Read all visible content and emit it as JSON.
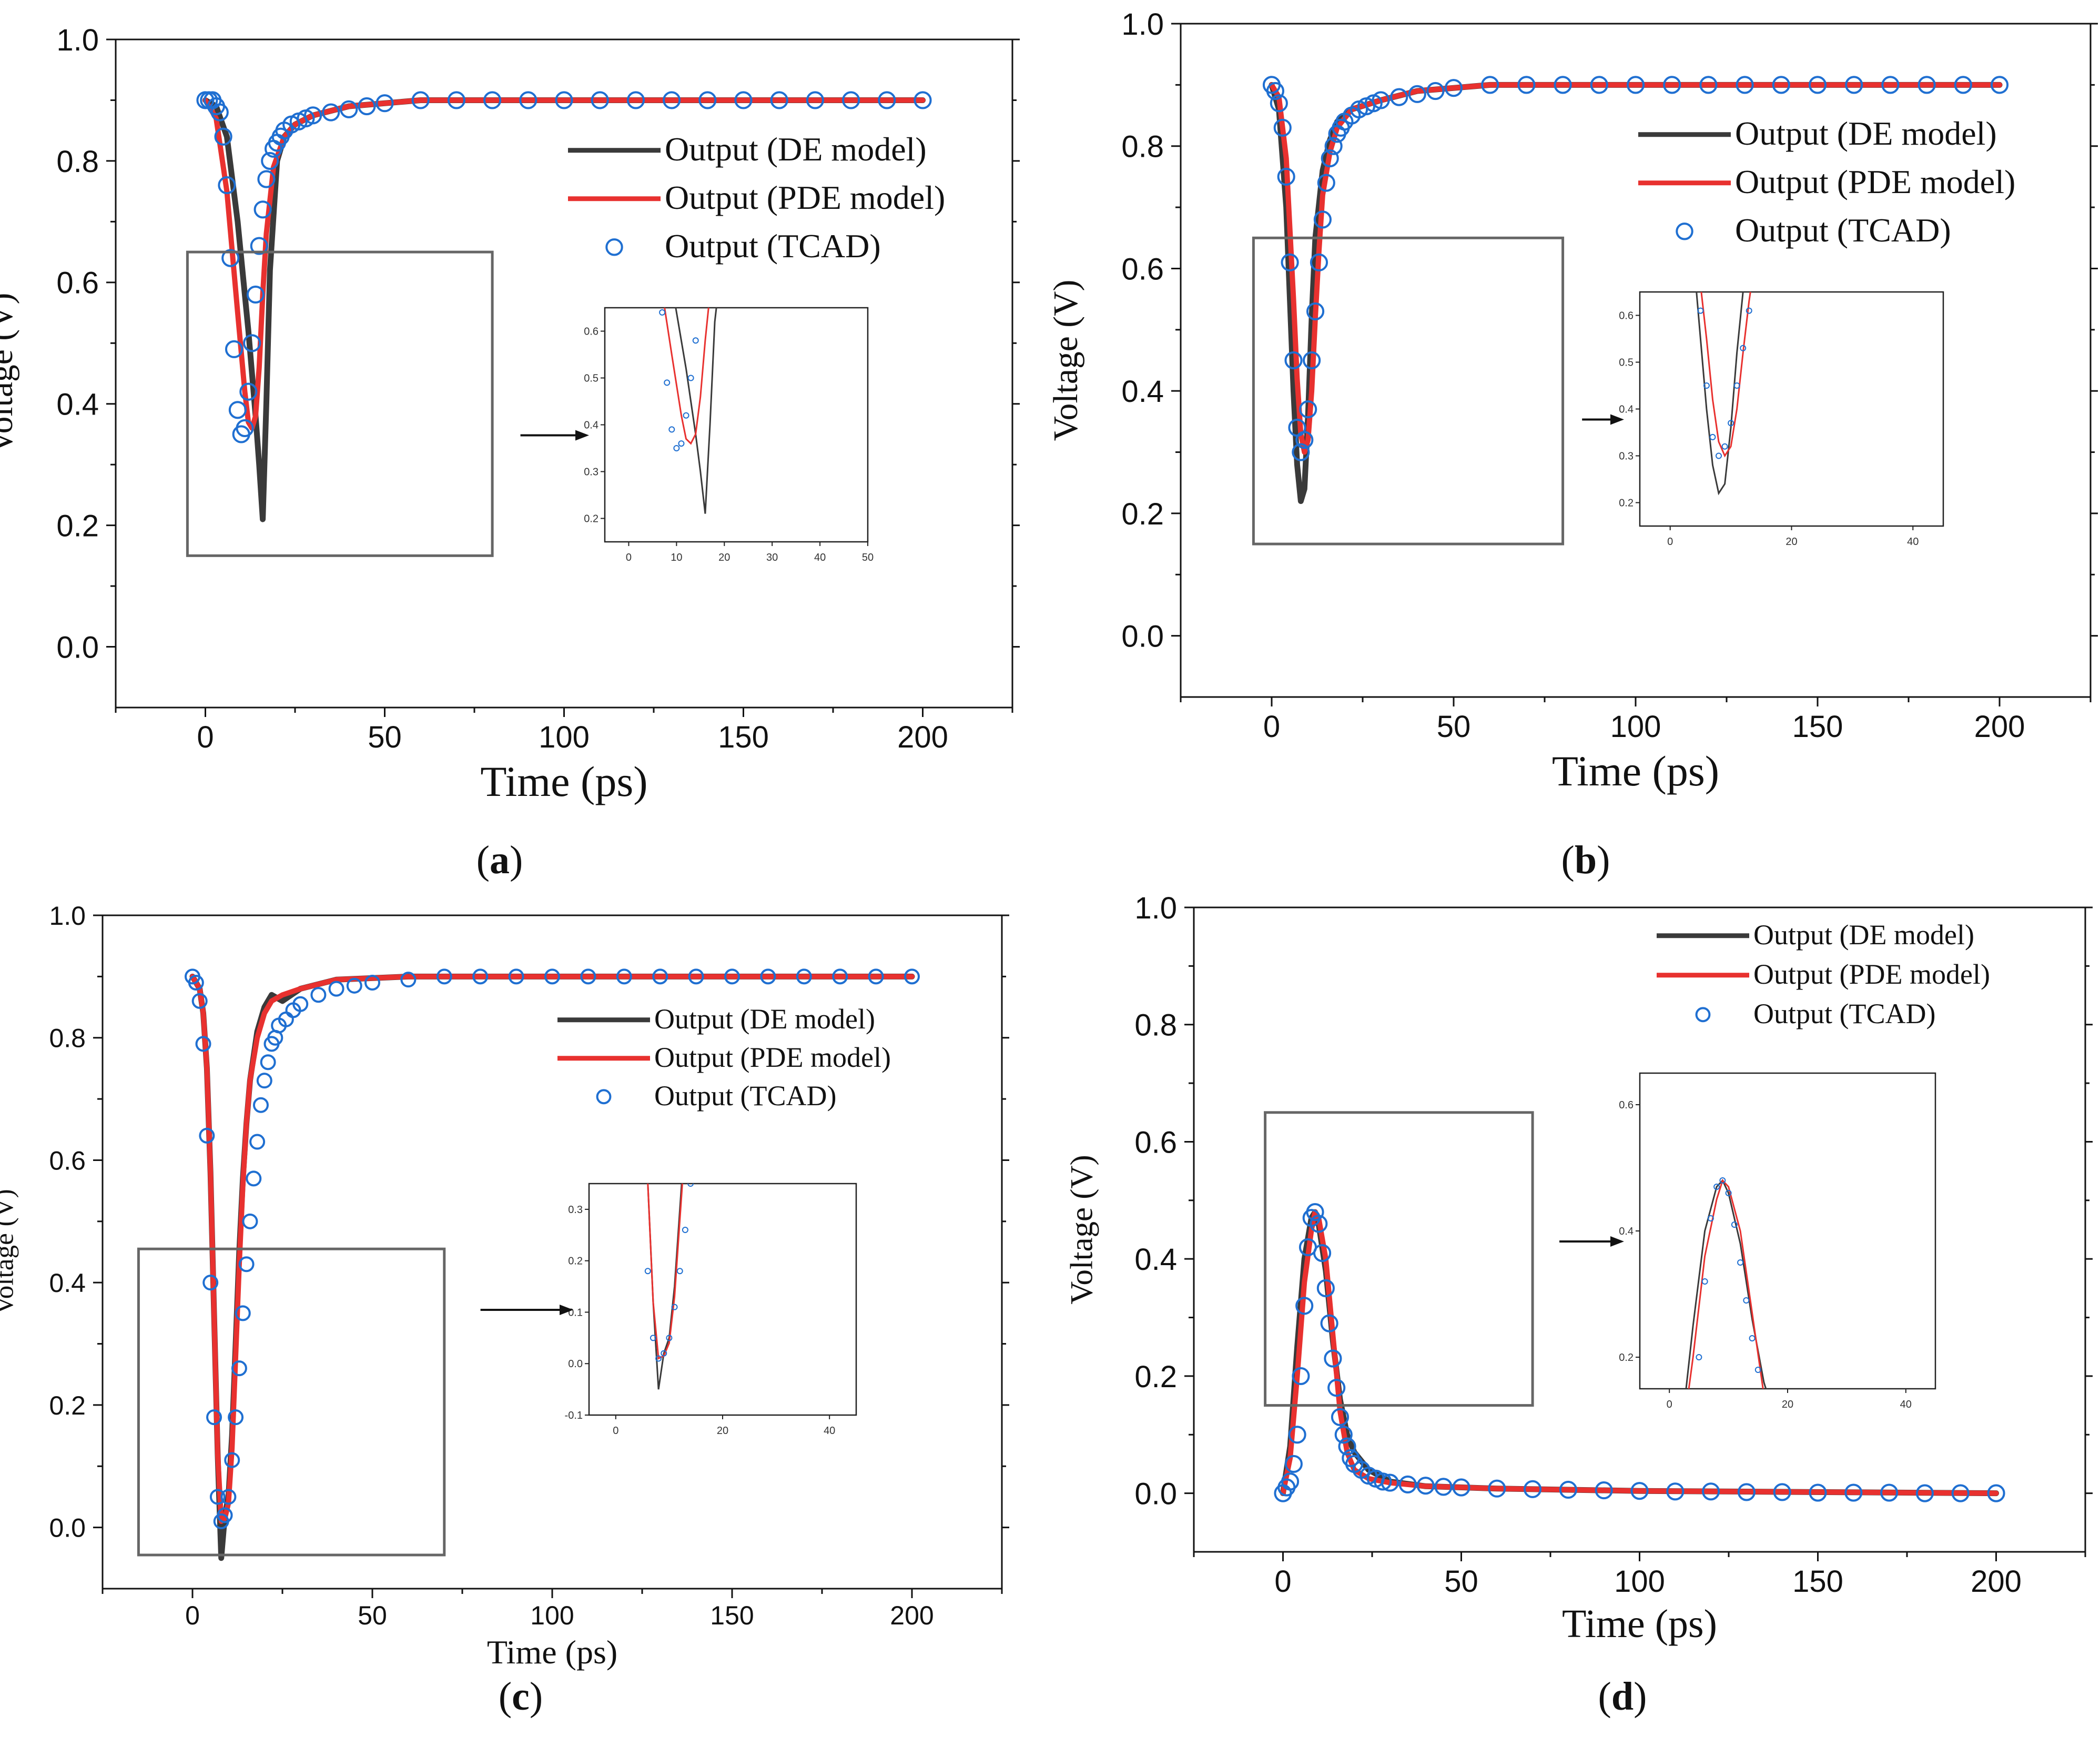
{
  "colors": {
    "de": "#3a3a3a",
    "pde": "#e8312f",
    "tcad": "#1f6fd1",
    "axis": "#111111",
    "zoom_box": "#666666"
  },
  "legend_labels": {
    "de": "Output (DE model)",
    "pde": "Output (PDE model)",
    "tcad": "Output (TCAD)"
  },
  "chart_data": [
    {
      "id": "a",
      "caption_letter": "a",
      "type": "line",
      "xlabel": "Time (ps)",
      "ylabel": "Voltage (V)",
      "xlim": [
        -25,
        225
      ],
      "ylim": [
        -0.1,
        1.0
      ],
      "xticks": [
        "0",
        "50",
        "100",
        "150",
        "200"
      ],
      "yticks": [
        "0.0",
        "0.2",
        "0.4",
        "0.6",
        "0.8",
        "1.0"
      ],
      "series": [
        {
          "name": "Output (DE model)",
          "key": "de",
          "kind": "line",
          "x": [
            0,
            3,
            6,
            9,
            12,
            14,
            15,
            16,
            17,
            18,
            20,
            22,
            25,
            30,
            40,
            60,
            80,
            200
          ],
          "y": [
            0.9,
            0.89,
            0.84,
            0.7,
            0.52,
            0.38,
            0.3,
            0.21,
            0.4,
            0.62,
            0.8,
            0.84,
            0.86,
            0.875,
            0.89,
            0.9,
            0.9,
            0.9
          ]
        },
        {
          "name": "Output (PDE model)",
          "key": "pde",
          "kind": "line",
          "x": [
            0,
            3,
            6,
            9,
            11,
            12,
            13,
            14,
            15,
            16,
            17,
            19,
            22,
            25,
            30,
            40,
            60,
            200
          ],
          "y": [
            0.9,
            0.87,
            0.75,
            0.55,
            0.42,
            0.37,
            0.36,
            0.38,
            0.46,
            0.58,
            0.68,
            0.79,
            0.84,
            0.86,
            0.875,
            0.89,
            0.9,
            0.9
          ]
        },
        {
          "name": "Output (TCAD)",
          "key": "tcad",
          "kind": "scatter",
          "x": [
            0,
            1,
            2,
            3,
            4,
            5,
            6,
            7,
            8,
            9,
            10,
            11,
            12,
            13,
            14,
            15,
            16,
            17,
            18,
            19,
            20,
            21,
            22,
            24,
            26,
            28,
            30,
            35,
            40,
            45,
            50,
            60,
            70,
            80,
            90,
            100,
            110,
            120,
            130,
            140,
            150,
            160,
            170,
            180,
            190,
            200
          ],
          "y": [
            0.9,
            0.9,
            0.9,
            0.89,
            0.88,
            0.84,
            0.76,
            0.64,
            0.49,
            0.39,
            0.35,
            0.36,
            0.42,
            0.5,
            0.58,
            0.66,
            0.72,
            0.77,
            0.8,
            0.82,
            0.83,
            0.84,
            0.85,
            0.86,
            0.865,
            0.87,
            0.875,
            0.88,
            0.885,
            0.89,
            0.895,
            0.9,
            0.9,
            0.9,
            0.9,
            0.9,
            0.9,
            0.9,
            0.9,
            0.9,
            0.9,
            0.9,
            0.9,
            0.9,
            0.9,
            0.9
          ]
        }
      ],
      "zoom_box": {
        "x": [
          -5,
          80
        ],
        "y": [
          0.15,
          0.65
        ]
      },
      "inset": {
        "xlim": [
          -5,
          50
        ],
        "ylim": [
          0.15,
          0.65
        ],
        "xticks": [
          "0",
          "10",
          "20",
          "30",
          "40",
          "50"
        ],
        "yticks": [
          "0.2",
          "0.3",
          "0.4",
          "0.5",
          "0.6"
        ]
      }
    },
    {
      "id": "b",
      "caption_letter": "b",
      "type": "line",
      "xlabel": "Time (ps)",
      "ylabel": "Voltage (V)",
      "xlim": [
        -25,
        225
      ],
      "ylim": [
        -0.1,
        1.0
      ],
      "xticks": [
        "0",
        "50",
        "100",
        "150",
        "200"
      ],
      "yticks": [
        "0.0",
        "0.2",
        "0.4",
        "0.6",
        "0.8",
        "1.0"
      ],
      "series": [
        {
          "name": "Output (DE model)",
          "key": "de",
          "kind": "line",
          "x": [
            0,
            2,
            4,
            5,
            6,
            7,
            8,
            9,
            10,
            11,
            12,
            14,
            16,
            18,
            22,
            30,
            40,
            60,
            200
          ],
          "y": [
            0.9,
            0.86,
            0.7,
            0.55,
            0.4,
            0.28,
            0.22,
            0.24,
            0.36,
            0.52,
            0.65,
            0.76,
            0.81,
            0.84,
            0.86,
            0.875,
            0.89,
            0.9,
            0.9
          ]
        },
        {
          "name": "Output (PDE model)",
          "key": "pde",
          "kind": "line",
          "x": [
            0,
            2,
            4,
            6,
            7,
            8,
            9,
            10,
            11,
            12,
            13,
            14,
            16,
            18,
            22,
            30,
            40,
            60,
            200
          ],
          "y": [
            0.9,
            0.88,
            0.78,
            0.55,
            0.42,
            0.33,
            0.3,
            0.32,
            0.4,
            0.52,
            0.63,
            0.72,
            0.79,
            0.83,
            0.86,
            0.875,
            0.89,
            0.9,
            0.9
          ]
        },
        {
          "name": "Output (TCAD)",
          "key": "tcad",
          "kind": "scatter",
          "x": [
            0,
            1,
            2,
            3,
            4,
            5,
            6,
            7,
            8,
            9,
            10,
            11,
            12,
            13,
            14,
            15,
            16,
            17,
            18,
            19,
            20,
            22,
            24,
            26,
            28,
            30,
            35,
            40,
            45,
            50,
            60,
            70,
            80,
            90,
            100,
            110,
            120,
            130,
            140,
            150,
            160,
            170,
            180,
            190,
            200
          ],
          "y": [
            0.9,
            0.89,
            0.87,
            0.83,
            0.75,
            0.61,
            0.45,
            0.34,
            0.3,
            0.32,
            0.37,
            0.45,
            0.53,
            0.61,
            0.68,
            0.74,
            0.78,
            0.8,
            0.82,
            0.83,
            0.84,
            0.85,
            0.86,
            0.865,
            0.87,
            0.875,
            0.88,
            0.885,
            0.89,
            0.895,
            0.9,
            0.9,
            0.9,
            0.9,
            0.9,
            0.9,
            0.9,
            0.9,
            0.9,
            0.9,
            0.9,
            0.9,
            0.9,
            0.9,
            0.9
          ]
        }
      ],
      "zoom_box": {
        "x": [
          -5,
          80
        ],
        "y": [
          0.15,
          0.65
        ]
      },
      "inset": {
        "xlim": [
          -5,
          45
        ],
        "ylim": [
          0.15,
          0.65
        ],
        "xticks": [
          "0",
          "20",
          "40"
        ],
        "yticks": [
          "0.2",
          "0.3",
          "0.4",
          "0.5",
          "0.6"
        ]
      }
    },
    {
      "id": "c",
      "caption_letter": "c",
      "type": "line",
      "xlabel": "Time (ps)",
      "ylabel": "Voltage (V)",
      "xlim": [
        -25,
        225
      ],
      "ylim": [
        -0.1,
        1.0
      ],
      "xticks": [
        "0",
        "50",
        "100",
        "150",
        "200"
      ],
      "yticks": [
        "0.0",
        "0.2",
        "0.4",
        "0.6",
        "0.8",
        "1.0"
      ],
      "series": [
        {
          "name": "Output (DE model)",
          "key": "de",
          "kind": "line",
          "x": [
            0,
            2,
            3,
            4,
            5,
            6,
            7,
            8,
            9,
            10,
            11,
            12,
            13,
            14,
            15,
            16,
            18,
            20,
            22,
            25,
            30,
            40,
            60,
            200
          ],
          "y": [
            0.9,
            0.88,
            0.84,
            0.75,
            0.58,
            0.35,
            0.12,
            -0.05,
            0.02,
            0.05,
            0.15,
            0.3,
            0.45,
            0.57,
            0.66,
            0.73,
            0.81,
            0.85,
            0.87,
            0.86,
            0.88,
            0.895,
            0.9,
            0.9
          ]
        },
        {
          "name": "Output (PDE model)",
          "key": "pde",
          "kind": "line",
          "x": [
            0,
            2,
            3,
            4,
            5,
            6,
            7,
            8,
            9,
            10,
            11,
            12,
            13,
            14,
            15,
            16,
            18,
            20,
            22,
            25,
            30,
            40,
            60,
            200
          ],
          "y": [
            0.9,
            0.88,
            0.84,
            0.75,
            0.58,
            0.35,
            0.12,
            0.01,
            0.015,
            0.04,
            0.13,
            0.28,
            0.43,
            0.56,
            0.66,
            0.73,
            0.8,
            0.84,
            0.86,
            0.87,
            0.88,
            0.895,
            0.9,
            0.9
          ]
        },
        {
          "name": "Output (TCAD)",
          "key": "tcad",
          "kind": "scatter",
          "x": [
            0,
            1,
            2,
            3,
            4,
            5,
            6,
            7,
            8,
            9,
            10,
            11,
            12,
            13,
            14,
            15,
            16,
            17,
            18,
            19,
            20,
            21,
            22,
            23,
            24,
            26,
            28,
            30,
            35,
            40,
            45,
            50,
            60,
            70,
            80,
            90,
            100,
            110,
            120,
            130,
            140,
            150,
            160,
            170,
            180,
            190,
            200
          ],
          "y": [
            0.9,
            0.89,
            0.86,
            0.79,
            0.64,
            0.4,
            0.18,
            0.05,
            0.01,
            0.02,
            0.05,
            0.11,
            0.18,
            0.26,
            0.35,
            0.43,
            0.5,
            0.57,
            0.63,
            0.69,
            0.73,
            0.76,
            0.79,
            0.8,
            0.82,
            0.83,
            0.845,
            0.855,
            0.87,
            0.88,
            0.885,
            0.89,
            0.895,
            0.9,
            0.9,
            0.9,
            0.9,
            0.9,
            0.9,
            0.9,
            0.9,
            0.9,
            0.9,
            0.9,
            0.9,
            0.9,
            0.9
          ]
        }
      ],
      "zoom_box": {
        "x": [
          -15,
          70
        ],
        "y": [
          -0.045,
          0.455
        ]
      },
      "inset": {
        "xlim": [
          -5,
          45
        ],
        "ylim": [
          -0.1,
          0.35
        ],
        "xticks": [
          "0",
          "20",
          "40"
        ],
        "yticks": [
          "-0.1",
          "0.0",
          "0.1",
          "0.2",
          "0.3"
        ]
      }
    },
    {
      "id": "d",
      "caption_letter": "d",
      "type": "line",
      "xlabel": "Time (ps)",
      "ylabel": "Voltage (V)",
      "xlim": [
        -25,
        225
      ],
      "ylim": [
        -0.1,
        1.0
      ],
      "xticks": [
        "0",
        "50",
        "100",
        "150",
        "200"
      ],
      "yticks": [
        "0.0",
        "0.2",
        "0.4",
        "0.6",
        "0.8",
        "1.0"
      ],
      "series": [
        {
          "name": "Output (DE model)",
          "key": "de",
          "kind": "line",
          "x": [
            0,
            2,
            4,
            6,
            8,
            9,
            10,
            12,
            14,
            16,
            18,
            20,
            24,
            30,
            40,
            60,
            100,
            200
          ],
          "y": [
            0.0,
            0.08,
            0.25,
            0.4,
            0.47,
            0.48,
            0.46,
            0.38,
            0.26,
            0.16,
            0.1,
            0.07,
            0.04,
            0.02,
            0.012,
            0.008,
            0.004,
            0.0
          ]
        },
        {
          "name": "Output (PDE model)",
          "key": "pde",
          "kind": "line",
          "x": [
            0,
            2,
            4,
            6,
            8,
            9,
            10,
            12,
            14,
            16,
            18,
            20,
            24,
            30,
            40,
            60,
            100,
            200
          ],
          "y": [
            0.0,
            0.06,
            0.2,
            0.36,
            0.45,
            0.48,
            0.47,
            0.4,
            0.27,
            0.14,
            0.07,
            0.04,
            0.025,
            0.018,
            0.012,
            0.008,
            0.004,
            0.0
          ]
        },
        {
          "name": "Output (TCAD)",
          "key": "tcad",
          "kind": "scatter",
          "x": [
            0,
            1,
            2,
            3,
            4,
            5,
            6,
            7,
            8,
            9,
            10,
            11,
            12,
            13,
            14,
            15,
            16,
            17,
            18,
            19,
            20,
            22,
            24,
            26,
            28,
            30,
            35,
            40,
            45,
            50,
            60,
            70,
            80,
            90,
            100,
            110,
            120,
            130,
            140,
            150,
            160,
            170,
            180,
            190,
            200
          ],
          "y": [
            0.0,
            0.01,
            0.02,
            0.05,
            0.1,
            0.2,
            0.32,
            0.42,
            0.47,
            0.48,
            0.46,
            0.41,
            0.35,
            0.29,
            0.23,
            0.18,
            0.13,
            0.1,
            0.08,
            0.06,
            0.05,
            0.04,
            0.03,
            0.025,
            0.02,
            0.018,
            0.015,
            0.013,
            0.011,
            0.01,
            0.008,
            0.007,
            0.006,
            0.005,
            0.004,
            0.003,
            0.003,
            0.002,
            0.002,
            0.001,
            0.001,
            0.001,
            0.0,
            0.0,
            0.0
          ]
        }
      ],
      "zoom_box": {
        "x": [
          -5,
          70
        ],
        "y": [
          0.15,
          0.65
        ]
      },
      "inset": {
        "xlim": [
          -5,
          45
        ],
        "ylim": [
          0.15,
          0.65
        ],
        "xticks": [
          "0",
          "20",
          "40"
        ],
        "yticks": [
          "0.2",
          "0.4",
          "0.6"
        ]
      }
    }
  ]
}
